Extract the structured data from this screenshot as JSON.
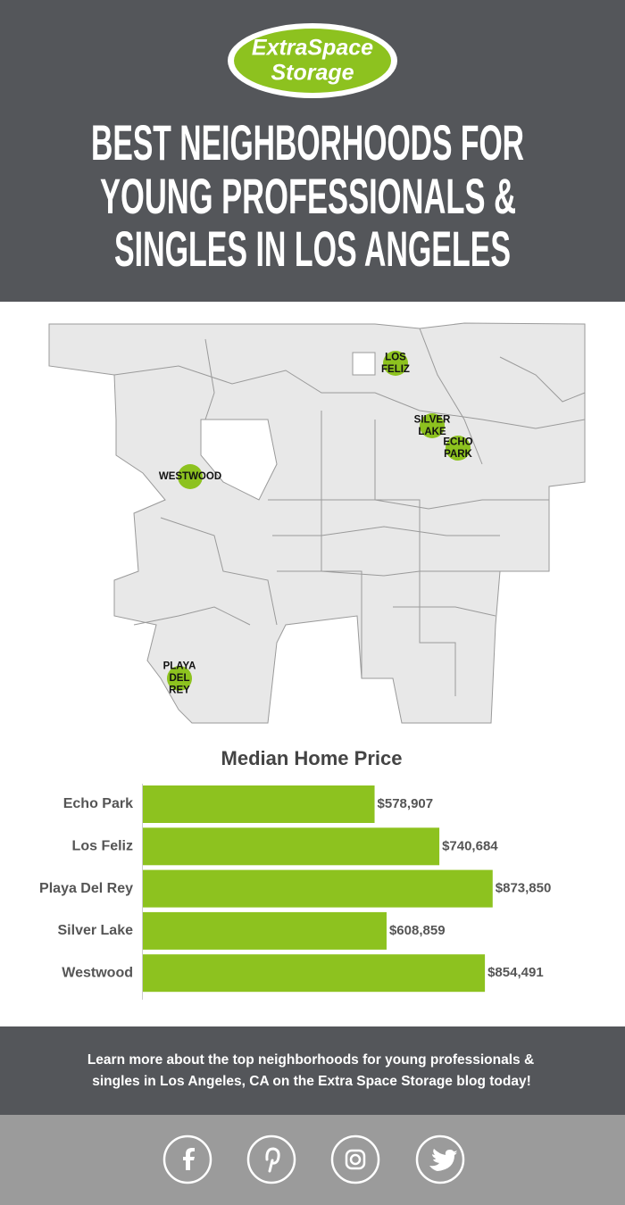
{
  "header": {
    "logo": [
      "ExtraSpace",
      "Storage"
    ],
    "title": [
      "BEST NEIGHBORHOODS FOR",
      "YOUNG PROFESSIONALS &",
      "SINGLES IN LOS ANGELES"
    ]
  },
  "map": {
    "labels": [
      [
        "LOS",
        "FELIZ"
      ],
      [
        "SILVER",
        "LAKE"
      ],
      [
        "ECHO",
        "PARK"
      ],
      [
        "WESTWOOD"
      ],
      [
        "PLAYA",
        "DEL",
        "REY"
      ]
    ]
  },
  "chart_data": {
    "type": "bar",
    "orientation": "horizontal",
    "title": "Median Home Price",
    "categories": [
      "Echo Park",
      "Los Feliz",
      "Playa Del Rey",
      "Silver Lake",
      "Westwood"
    ],
    "values": [
      578907,
      740684,
      873850,
      608859,
      854491
    ],
    "value_labels": [
      "$578,907",
      "$740,684",
      "$873,850",
      "$608,859",
      "$854,491"
    ],
    "color": "#8dc21f",
    "xlim": [
      0,
      1200000
    ]
  },
  "footer": {
    "text": [
      "Learn more about the top neighborhoods for young professionals &",
      "singles in Los Angeles, CA on the Extra Space Storage blog today!"
    ]
  }
}
